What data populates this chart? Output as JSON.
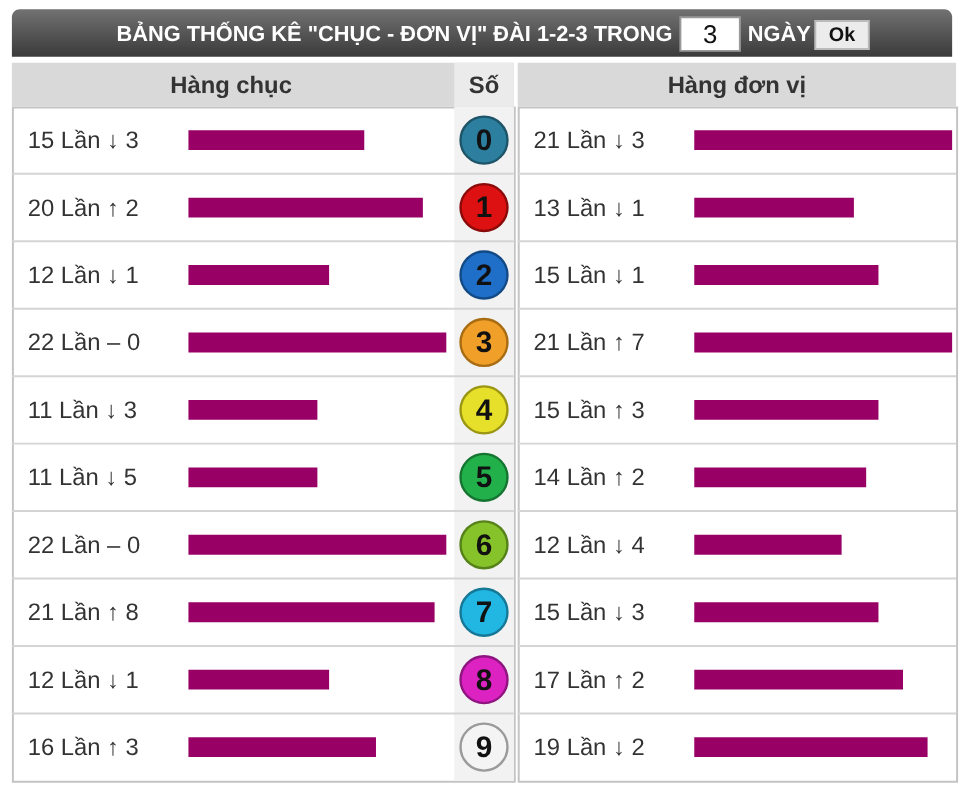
{
  "chart_data": [
    {
      "type": "other",
      "title": "BẢNG THỐNG KÊ \"CHỤC - ĐƠN VỊ\" ĐÀI 1-2-3 TRONG",
      "annotations": [
        "3",
        "NGÀY",
        "Ok"
      ]
    },
    {
      "type": "bar",
      "orientation": "horizontal",
      "title": "Hàng chục",
      "ylabel": "Số",
      "categories": [
        "0",
        "1",
        "2",
        "3",
        "4",
        "5",
        "6",
        "7",
        "8",
        "9"
      ],
      "values": [
        15,
        20,
        12,
        22,
        11,
        11,
        22,
        21,
        12,
        16
      ],
      "color": "#990066",
      "value_labels": [
        "15 Lần ↓ 3",
        "20 Lần ↑ 2",
        "12 Lần ↓ 1",
        "22 Lần – 0",
        "11 Lần ↓ 3",
        "11 Lần ↓ 5",
        "22 Lần – 0",
        "21 Lần ↑ 8",
        "12 Lần ↓ 1",
        "16 Lần ↑ 3"
      ],
      "tick_labels": "y",
      "grid": "y"
    },
    {
      "type": "bar",
      "orientation": "horizontal",
      "title": "Hàng đơn vị",
      "categories": [
        "0",
        "1",
        "2",
        "3",
        "4",
        "5",
        "6",
        "7",
        "8",
        "9"
      ],
      "values": [
        21,
        13,
        15,
        21,
        15,
        14,
        12,
        15,
        17,
        19
      ],
      "color": "#990066",
      "value_labels": [
        "21 Lần ↓ 3",
        "13 Lần ↓ 1",
        "15 Lần ↓ 1",
        "21 Lần ↑ 7",
        "15 Lần ↑ 3",
        "14 Lần ↑ 2",
        "12 Lần ↓ 4",
        "15 Lần ↓ 3",
        "17 Lần ↑ 2",
        "19 Lần ↓ 2"
      ],
      "tick_labels": false,
      "grid": "y"
    }
  ]
}
